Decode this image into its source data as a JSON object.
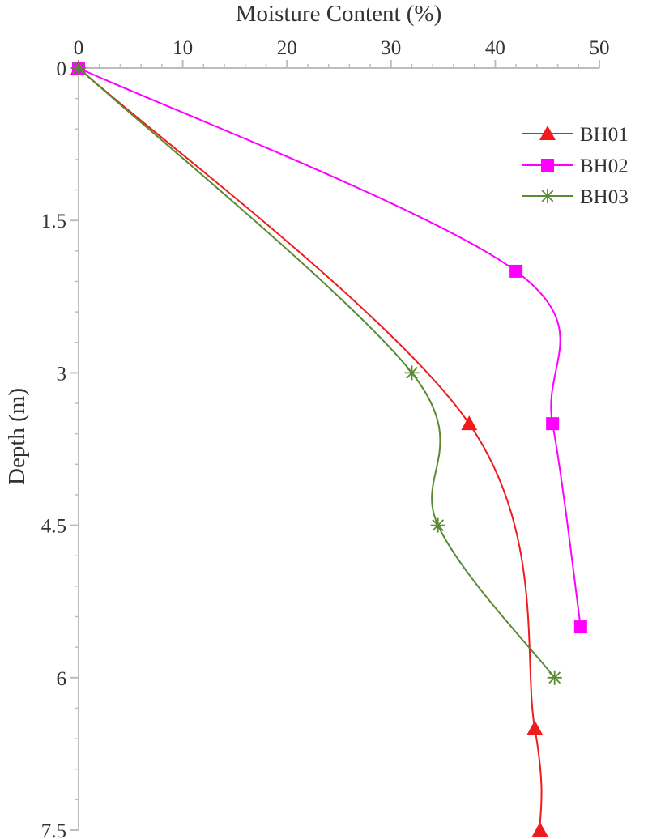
{
  "chart_data": {
    "type": "line",
    "xlabel": "Moisture Content (%)",
    "ylabel": "Depth (m)",
    "x_axis_position": "top",
    "y_axis_inverted": true,
    "xlim": [
      0,
      50
    ],
    "ylim": [
      0,
      7.5
    ],
    "x_ticks": [
      0,
      10,
      20,
      30,
      40,
      50
    ],
    "y_ticks": [
      0,
      1.5,
      3,
      4.5,
      6,
      7.5
    ],
    "y_tick_labels": [
      "0",
      "1.5",
      "3",
      "4.5",
      "6",
      "7.5"
    ],
    "grid": false,
    "smoothed": true,
    "legend_position": "top-right",
    "series": [
      {
        "name": "BH01",
        "color": "#ee1c1c",
        "marker": "triangle",
        "points": [
          [
            0,
            0
          ],
          [
            37.5,
            3.5
          ],
          [
            43.8,
            6.5
          ],
          [
            44.3,
            7.5
          ]
        ]
      },
      {
        "name": "BH02",
        "color": "#ff00ff",
        "marker": "square",
        "points": [
          [
            0,
            0
          ],
          [
            42.0,
            2.0
          ],
          [
            45.5,
            3.5
          ],
          [
            48.2,
            5.5
          ]
        ]
      },
      {
        "name": "BH03",
        "color": "#5a8a32",
        "marker": "asterisk",
        "points": [
          [
            0,
            0
          ],
          [
            32.0,
            3.0
          ],
          [
            34.5,
            4.5
          ],
          [
            45.7,
            6.0
          ]
        ]
      }
    ]
  }
}
